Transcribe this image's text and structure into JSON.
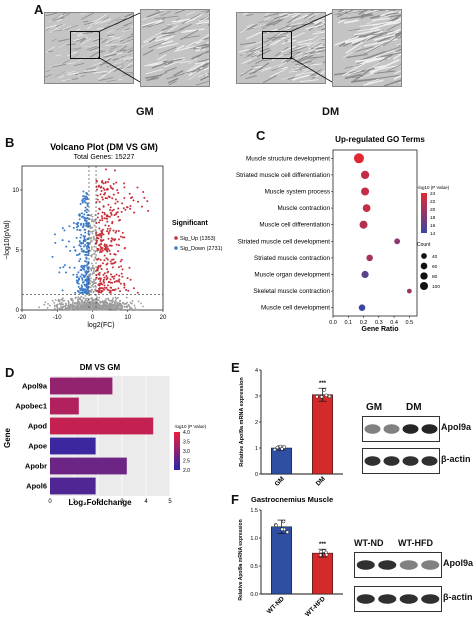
{
  "panels": {
    "A": "A",
    "B": "B",
    "C": "C",
    "D": "D",
    "E": "E",
    "F": "F"
  },
  "panel_a": {
    "conditions": [
      "GM",
      "DM"
    ]
  },
  "chart_data": [
    {
      "id": "volcano",
      "type": "scatter",
      "title": "Volcano Plot (DM VS GM)",
      "subtitle": "Total Genes: 15227",
      "xlabel": "log2(FC)",
      "ylabel": "−log10(pVal)",
      "xlim": [
        -20,
        20
      ],
      "ylim": [
        0,
        12
      ],
      "xticks": [
        -20,
        -10,
        0,
        10,
        20
      ],
      "yticks": [
        0,
        5,
        10
      ],
      "legend_title": "Significant",
      "series": [
        {
          "name": "Sig_Up (1353)",
          "color": "#c8303a"
        },
        {
          "name": "Sig_Down (2731)",
          "color": "#3d7cc9"
        }
      ],
      "legend_position": "right"
    },
    {
      "id": "go-terms",
      "type": "scatter",
      "title": "Up-regulated GO Terms",
      "xlabel": "Gene Ratio",
      "ylabel": "",
      "xticks": [
        0.0,
        0.1,
        0.2,
        0.3,
        0.4,
        0.5
      ],
      "xtick_labels": [
        "0.0",
        "0.1",
        "0.2",
        "0.3",
        "0.4",
        "0.5"
      ],
      "xlim": [
        0,
        0.55
      ],
      "categories": [
        "Muscle structure development",
        "Striated muscle cell differentiation",
        "Muscle system process",
        "Muscle contraction",
        "Muscle cell differentiation",
        "Striated muscle cell development",
        "Striated muscle contraction",
        "Muscle organ development",
        "Skeletal muscle contraction",
        "Muscle cell development"
      ],
      "gene_ratio": [
        0.17,
        0.21,
        0.21,
        0.22,
        0.2,
        0.42,
        0.24,
        0.21,
        0.5,
        0.19
      ],
      "neglog10p": [
        24,
        22,
        22,
        22,
        21,
        18,
        20,
        15,
        19,
        13
      ],
      "count": [
        100,
        60,
        55,
        50,
        55,
        20,
        30,
        40,
        10,
        30
      ],
      "color_legend_title": "-log10 (P Value)",
      "color_ticks": [
        24,
        22,
        20,
        18,
        16,
        14
      ],
      "size_legend_title": "Count",
      "size_ticks": [
        40,
        60,
        80,
        100
      ]
    },
    {
      "id": "foldchange",
      "type": "bar",
      "title": "DM VS GM",
      "xlabel": "Log₂Foldchange",
      "ylabel": "Gene",
      "categories": [
        "Apol9a",
        "Apobec1",
        "Apod",
        "Apoe",
        "Apobr",
        "Apol6"
      ],
      "values": [
        2.6,
        1.2,
        4.3,
        1.9,
        3.2,
        1.9
      ],
      "neglog10p": [
        3.1,
        3.4,
        3.6,
        2.2,
        2.7,
        2.4
      ],
      "xticks": [
        0,
        1,
        2,
        3,
        4,
        5
      ],
      "xlim": [
        0,
        5
      ],
      "color_legend_title": "-log10 (P Value)",
      "color_ticks": [
        "4.0",
        "3.5",
        "3.0",
        "2.5",
        "2.0"
      ]
    },
    {
      "id": "apol9a-cells",
      "type": "bar",
      "ylabel": "Relative Apol9a mRNA expression",
      "categories": [
        "GM",
        "DM"
      ],
      "values": [
        1.0,
        3.05
      ],
      "errors": [
        0.08,
        0.25
      ],
      "colors": [
        "#2f4fa3",
        "#d42a2a"
      ],
      "ylim": [
        0,
        4
      ],
      "yticks": [
        0,
        1,
        2,
        3,
        4
      ],
      "significance": "***"
    },
    {
      "id": "apol9a-muscle",
      "type": "bar",
      "title": "Gastrocnemius Muscle",
      "ylabel": "Relative Apol9a mRNA expression",
      "categories": [
        "WT-ND",
        "WT-HFD"
      ],
      "values": [
        1.2,
        0.73
      ],
      "errors": [
        0.12,
        0.07
      ],
      "colors": [
        "#2f4fa3",
        "#d42a2a"
      ],
      "ylim": [
        0,
        1.5
      ],
      "yticks": [
        0.0,
        0.5,
        1.0,
        1.5
      ],
      "ytick_labels": [
        "0.0",
        "0.5",
        "1.0",
        "1.5"
      ],
      "significance": "***"
    }
  ],
  "blot_e": {
    "lanes": [
      "GM",
      "DM"
    ],
    "proteins": [
      "Apol9a",
      "β-actin"
    ]
  },
  "blot_f": {
    "lanes": [
      "WT-ND",
      "WT-HFD"
    ],
    "proteins": [
      "Apol9a",
      "β-actin"
    ]
  }
}
